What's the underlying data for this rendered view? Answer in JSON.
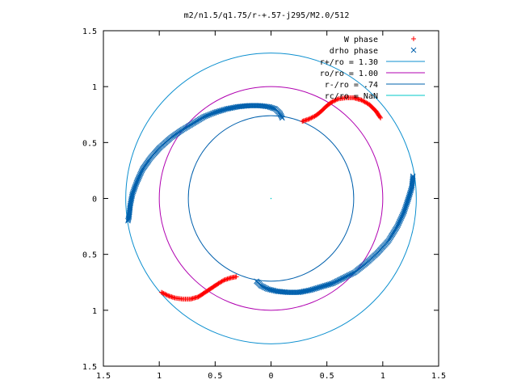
{
  "chart_data": {
    "type": "scatter",
    "title": "m2/n1.5/q1.75/r-+.57-j295/M2.0/512",
    "xlabel": "",
    "ylabel": "",
    "xlim": [
      -1.5,
      1.5
    ],
    "ylim": [
      -1.5,
      1.5
    ],
    "x_ticks": [
      {
        "value": -1.5,
        "label": "1.5"
      },
      {
        "value": -1.0,
        "label": "1"
      },
      {
        "value": -0.5,
        "label": "0.5"
      },
      {
        "value": 0.0,
        "label": "0"
      },
      {
        "value": 0.5,
        "label": "0.5"
      },
      {
        "value": 1.0,
        "label": "1"
      },
      {
        "value": 1.5,
        "label": "1.5"
      }
    ],
    "y_ticks": [
      {
        "value": 1.5,
        "label": "1.5"
      },
      {
        "value": 1.0,
        "label": "1"
      },
      {
        "value": 0.5,
        "label": "0.5"
      },
      {
        "value": 0.0,
        "label": "0"
      },
      {
        "value": -0.5,
        "label": "0.5"
      },
      {
        "value": -1.0,
        "label": "1"
      },
      {
        "value": -1.5,
        "label": "1.5"
      }
    ],
    "grid": false,
    "legend_position": "top-right",
    "series": [
      {
        "name": "W phase",
        "kind": "points",
        "marker": "plus",
        "color": "#ff0000",
        "points": [
          [
            0.28,
            0.69
          ],
          [
            0.34,
            0.71
          ],
          [
            0.4,
            0.74
          ],
          [
            0.45,
            0.78
          ],
          [
            0.49,
            0.82
          ],
          [
            0.54,
            0.86
          ],
          [
            0.6,
            0.89
          ],
          [
            0.67,
            0.9
          ],
          [
            0.74,
            0.9
          ],
          [
            0.81,
            0.88
          ],
          [
            0.88,
            0.84
          ],
          [
            0.94,
            0.78
          ],
          [
            0.98,
            0.72
          ],
          [
            -0.98,
            -0.84
          ],
          [
            -0.92,
            -0.87
          ],
          [
            -0.86,
            -0.89
          ],
          [
            -0.79,
            -0.9
          ],
          [
            -0.72,
            -0.9
          ],
          [
            -0.65,
            -0.88
          ],
          [
            -0.59,
            -0.84
          ],
          [
            -0.53,
            -0.8
          ],
          [
            -0.47,
            -0.76
          ],
          [
            -0.42,
            -0.73
          ],
          [
            -0.36,
            -0.71
          ],
          [
            -0.31,
            -0.7
          ]
        ]
      },
      {
        "name": "drho phase",
        "kind": "points",
        "marker": "cross",
        "color": "#0060ad",
        "points": [
          [
            0.1,
            0.72
          ],
          [
            0.08,
            0.76
          ],
          [
            0.04,
            0.8
          ],
          [
            -0.02,
            0.82
          ],
          [
            -0.1,
            0.83
          ],
          [
            -0.2,
            0.83
          ],
          [
            -0.3,
            0.82
          ],
          [
            -0.4,
            0.8
          ],
          [
            -0.5,
            0.77
          ],
          [
            -0.6,
            0.73
          ],
          [
            -0.7,
            0.67
          ],
          [
            -0.8,
            0.61
          ],
          [
            -0.9,
            0.54
          ],
          [
            -1.0,
            0.45
          ],
          [
            -1.08,
            0.36
          ],
          [
            -1.15,
            0.26
          ],
          [
            -1.2,
            0.15
          ],
          [
            -1.24,
            0.04
          ],
          [
            -1.26,
            -0.06
          ],
          [
            -1.27,
            -0.16
          ],
          [
            -1.28,
            -0.2
          ],
          [
            -0.13,
            -0.74
          ],
          [
            -0.09,
            -0.78
          ],
          [
            -0.03,
            -0.81
          ],
          [
            0.05,
            -0.83
          ],
          [
            0.15,
            -0.84
          ],
          [
            0.25,
            -0.84
          ],
          [
            0.35,
            -0.82
          ],
          [
            0.45,
            -0.79
          ],
          [
            0.55,
            -0.76
          ],
          [
            0.65,
            -0.71
          ],
          [
            0.75,
            -0.66
          ],
          [
            0.85,
            -0.58
          ],
          [
            0.95,
            -0.49
          ],
          [
            1.05,
            -0.38
          ],
          [
            1.13,
            -0.25
          ],
          [
            1.19,
            -0.12
          ],
          [
            1.23,
            0.0
          ],
          [
            1.26,
            0.1
          ],
          [
            1.27,
            0.2
          ]
        ]
      },
      {
        "name": "r+/ro = 1.30",
        "kind": "circle",
        "radius": 1.3,
        "color": "#0c8fcf"
      },
      {
        "name": "ro/ro = 1.00",
        "kind": "circle",
        "radius": 1.0,
        "color": "#b000b0"
      },
      {
        "name": "r-/ro = .74",
        "kind": "circle",
        "radius": 0.74,
        "color": "#0060ad"
      },
      {
        "name": "rc/ro = NaN",
        "kind": "circle",
        "radius": null,
        "color": "#00c8c8"
      }
    ]
  }
}
